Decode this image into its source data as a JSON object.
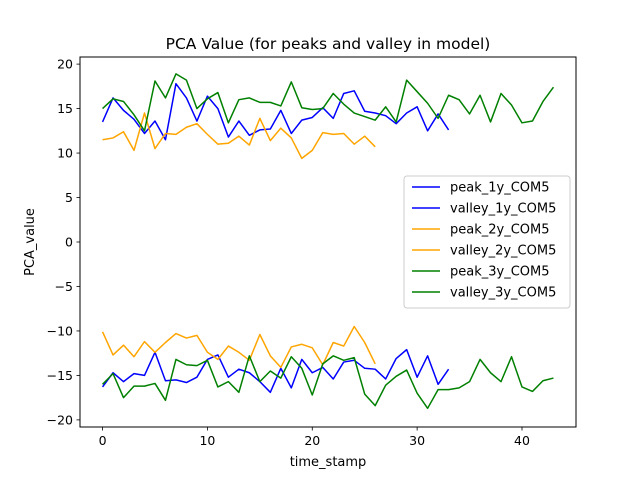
{
  "chart_data": {
    "type": "line",
    "title": "PCA Value (for peaks and valley in model)",
    "xlabel": "time_stamp",
    "ylabel": "PCA_value",
    "xlim": [
      -2.15,
      45.15
    ],
    "ylim": [
      -20.8,
      20.8
    ],
    "xticks": [
      0,
      10,
      20,
      30,
      40
    ],
    "yticks": [
      -20,
      -15,
      -10,
      -5,
      0,
      5,
      10,
      15,
      20
    ],
    "ytick_labels": [
      "−20",
      "−15",
      "−10",
      "−5",
      "0",
      "5",
      "10",
      "15",
      "20"
    ],
    "grid": false,
    "legend_position": "center-right",
    "series": [
      {
        "name": "peak_1y_COM5",
        "color": "#0000ff",
        "values": [
          13.5,
          16.2,
          14.8,
          13.8,
          12.2,
          13.6,
          11.5,
          17.8,
          16.2,
          13.6,
          16.4,
          15.0,
          11.8,
          13.6,
          12.0,
          12.6,
          12.7,
          14.8,
          12.2,
          13.7,
          14.0,
          15.1,
          13.9,
          16.7,
          17.0,
          14.7,
          14.5,
          14.2,
          13.3,
          14.5,
          15.2,
          12.5,
          14.4,
          12.6
        ]
      },
      {
        "name": "valley_1y_COM5",
        "color": "#0000ff",
        "values": [
          -16.3,
          -14.7,
          -15.7,
          -14.8,
          -15.0,
          -12.4,
          -15.6,
          -15.5,
          -15.8,
          -15.2,
          -13.2,
          -12.7,
          -15.2,
          -14.3,
          -14.7,
          -15.7,
          -16.9,
          -14.2,
          -16.4,
          -13.2,
          -14.7,
          -14.1,
          -15.4,
          -13.5,
          -13.3,
          -14.2,
          -14.3,
          -15.4,
          -13.1,
          -12.1,
          -15.2,
          -12.8,
          -16.0,
          -14.3
        ]
      },
      {
        "name": "peak_2y_COM5",
        "color": "#ffa500",
        "values": [
          11.5,
          11.7,
          12.4,
          10.3,
          14.5,
          10.5,
          12.2,
          12.1,
          12.9,
          13.3,
          12.1,
          11.0,
          11.1,
          11.9,
          10.9,
          13.9,
          11.4,
          12.8,
          11.7,
          9.4,
          10.3,
          12.3,
          12.1,
          12.2,
          11.0,
          11.9,
          10.7
        ]
      },
      {
        "name": "valley_2y_COM5",
        "color": "#ffa500",
        "values": [
          -10.1,
          -12.7,
          -11.6,
          -12.9,
          -11.2,
          -12.4,
          -11.3,
          -10.3,
          -10.8,
          -10.5,
          -12.4,
          -13.2,
          -11.7,
          -12.4,
          -13.3,
          -10.4,
          -12.8,
          -14.1,
          -11.8,
          -11.5,
          -11.9,
          -13.8,
          -11.3,
          -11.7,
          -9.5,
          -11.3,
          -13.7
        ]
      },
      {
        "name": "peak_3y_COM5",
        "color": "#008000",
        "values": [
          15.0,
          16.1,
          15.8,
          14.3,
          12.5,
          18.1,
          16.2,
          18.9,
          18.2,
          15.0,
          16.1,
          16.8,
          13.4,
          16.0,
          16.2,
          15.7,
          15.7,
          15.3,
          18.0,
          15.1,
          14.9,
          15.0,
          16.7,
          15.5,
          14.5,
          14.1,
          13.7,
          15.2,
          13.5,
          18.2,
          16.9,
          15.6,
          13.9,
          16.5,
          16.0,
          14.4,
          16.5,
          13.5,
          16.7,
          15.4,
          13.4,
          13.6,
          15.8,
          17.4
        ]
      },
      {
        "name": "valley_3y_COM5",
        "color": "#008000",
        "values": [
          -16.0,
          -14.8,
          -17.5,
          -16.2,
          -16.2,
          -15.9,
          -17.8,
          -13.2,
          -13.8,
          -13.9,
          -13.3,
          -16.3,
          -15.7,
          -16.9,
          -12.8,
          -15.7,
          -14.5,
          -15.3,
          -12.9,
          -14.2,
          -17.2,
          -13.7,
          -12.8,
          -13.3,
          -13.0,
          -17.1,
          -18.4,
          -16.1,
          -15.1,
          -14.4,
          -17.0,
          -18.7,
          -16.6,
          -16.6,
          -16.4,
          -15.7,
          -13.2,
          -14.7,
          -15.7,
          -12.9,
          -16.3,
          -16.8,
          -15.6,
          -15.3
        ]
      }
    ]
  }
}
